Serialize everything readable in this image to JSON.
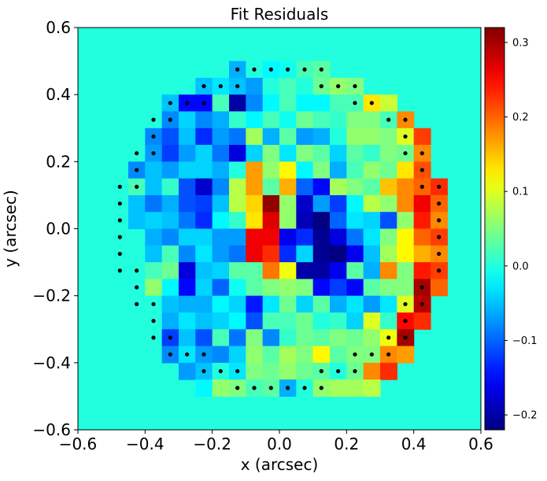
{
  "chart_data": {
    "type": "heatmap",
    "title": "Fit Residuals",
    "xlabel": "x (arcsec)",
    "ylabel": "y (arcsec)",
    "xlim": [
      -0.6,
      0.6
    ],
    "ylim": [
      -0.6,
      0.6
    ],
    "x_ticks": [
      "−0.6",
      "−0.4",
      "−0.2",
      "0.0",
      "0.2",
      "0.4",
      "0.6"
    ],
    "x_tick_values": [
      -0.6,
      -0.4,
      -0.2,
      0.0,
      0.2,
      0.4,
      0.6
    ],
    "y_ticks": [
      "−0.6",
      "−0.4",
      "−0.2",
      "0.0",
      "0.2",
      "0.4",
      "0.6"
    ],
    "y_tick_values": [
      -0.6,
      -0.4,
      -0.2,
      0.0,
      0.2,
      0.4,
      0.6
    ],
    "colorbar": {
      "colormap": "jet",
      "vmin": -0.22,
      "vmax": 0.32,
      "ticks": [
        "−0.2",
        "−0.1",
        "0.0",
        "0.1",
        "0.2",
        "0.3"
      ],
      "tick_values": [
        -0.2,
        -0.1,
        0.0,
        0.1,
        0.2,
        0.3
      ]
    },
    "background_value": 0.0,
    "grid": {
      "pixel_size_arcsec": 0.05,
      "col_centers_arcsec": [
        -0.475,
        -0.425,
        -0.375,
        -0.325,
        -0.275,
        -0.225,
        -0.175,
        -0.125,
        -0.075,
        -0.025,
        0.025,
        0.075,
        0.125,
        0.175,
        0.225,
        0.275,
        0.325,
        0.375,
        0.425,
        0.475
      ],
      "row_centers_arcsec": [
        0.475,
        0.425,
        0.375,
        0.325,
        0.275,
        0.225,
        0.175,
        0.125,
        0.075,
        0.025,
        -0.025,
        -0.075,
        -0.125,
        -0.175,
        -0.225,
        -0.275,
        -0.325,
        -0.375,
        -0.425,
        -0.475
      ]
    },
    "values": [
      [
        null,
        null,
        null,
        null,
        null,
        null,
        null,
        -0.06,
        0.0,
        -0.02,
        -0.01,
        0.02,
        0.03,
        null,
        null,
        null,
        null,
        null,
        null,
        null
      ],
      [
        null,
        null,
        null,
        null,
        null,
        -0.05,
        -0.03,
        -0.05,
        -0.07,
        0.0,
        0.02,
        0.0,
        0.04,
        0.06,
        0.05,
        null,
        null,
        null,
        null,
        null
      ],
      [
        null,
        null,
        null,
        -0.05,
        -0.15,
        -0.15,
        0.02,
        -0.2,
        -0.08,
        -0.02,
        0.02,
        -0.02,
        -0.02,
        0.02,
        0.02,
        0.13,
        0.09,
        null,
        null,
        null
      ],
      [
        null,
        null,
        null,
        -0.08,
        -0.04,
        -0.08,
        -0.06,
        0.01,
        -0.02,
        0.02,
        -0.01,
        0.04,
        0.02,
        0.01,
        0.05,
        0.05,
        0.02,
        0.18,
        null,
        null
      ],
      [
        null,
        null,
        -0.08,
        -0.11,
        -0.05,
        -0.13,
        -0.07,
        -0.09,
        0.07,
        -0.06,
        0.03,
        -0.07,
        -0.06,
        0.0,
        0.06,
        0.06,
        0.05,
        0.1,
        0.22,
        null
      ],
      [
        null,
        null,
        -0.07,
        -0.12,
        -0.07,
        -0.04,
        -0.09,
        -0.17,
        -0.04,
        0.05,
        -0.03,
        0.05,
        0.03,
        -0.04,
        0.03,
        0.01,
        0.05,
        0.04,
        0.18,
        null
      ],
      [
        null,
        -0.08,
        -0.05,
        -0.07,
        -0.04,
        -0.04,
        -0.06,
        0.0,
        0.17,
        0.06,
        0.12,
        -0.02,
        0.05,
        -0.06,
        0.02,
        0.06,
        0.04,
        0.13,
        0.21,
        null
      ],
      [
        null,
        0.02,
        -0.05,
        0.01,
        -0.11,
        -0.18,
        -0.08,
        0.08,
        0.17,
        0.03,
        0.16,
        -0.1,
        -0.15,
        0.07,
        0.05,
        0.03,
        0.15,
        0.18,
        0.2,
        0.23
      ],
      [
        null,
        -0.05,
        -0.09,
        -0.06,
        -0.11,
        -0.12,
        -0.05,
        0.08,
        0.14,
        0.31,
        0.06,
        -0.18,
        -0.07,
        -0.12,
        -0.02,
        0.08,
        0.06,
        0.18,
        0.26,
        0.2
      ],
      [
        null,
        -0.05,
        -0.04,
        -0.05,
        -0.09,
        -0.13,
        -0.02,
        0.01,
        0.13,
        0.27,
        0.06,
        -0.19,
        -0.22,
        -0.1,
        -0.03,
        -0.04,
        -0.11,
        0.06,
        0.24,
        0.18
      ],
      [
        null,
        null,
        -0.06,
        -0.08,
        -0.04,
        -0.04,
        -0.07,
        -0.07,
        0.26,
        0.26,
        -0.16,
        -0.13,
        -0.21,
        -0.17,
        -0.09,
        -0.03,
        0.05,
        0.12,
        0.2,
        0.22
      ],
      [
        null,
        null,
        -0.05,
        0.02,
        -0.08,
        -0.03,
        -0.07,
        -0.09,
        0.26,
        0.23,
        -0.13,
        -0.04,
        -0.21,
        -0.22,
        -0.16,
        -0.05,
        0.07,
        0.12,
        0.16,
        0.18
      ],
      [
        null,
        null,
        0.02,
        0.04,
        -0.17,
        -0.05,
        -0.04,
        0.03,
        0.03,
        0.19,
        0.11,
        -0.2,
        -0.2,
        -0.16,
        0.03,
        -0.06,
        0.18,
        0.05,
        0.24,
        0.22
      ],
      [
        null,
        null,
        0.06,
        -0.02,
        -0.15,
        -0.04,
        -0.1,
        -0.01,
        0.03,
        0.05,
        0.06,
        0.05,
        -0.15,
        -0.12,
        -0.15,
        0.03,
        0.05,
        0.05,
        0.3,
        0.2
      ],
      [
        null,
        null,
        0.0,
        -0.05,
        -0.06,
        -0.06,
        -0.02,
        -0.04,
        -0.14,
        -0.03,
        0.04,
        -0.04,
        0.03,
        -0.06,
        -0.03,
        -0.07,
        -0.03,
        0.1,
        0.29,
        null
      ],
      [
        null,
        null,
        0.0,
        -0.06,
        -0.03,
        -0.05,
        -0.04,
        -0.02,
        -0.11,
        0.02,
        0.02,
        0.04,
        0.0,
        0.01,
        -0.04,
        0.1,
        0.01,
        0.25,
        0.23,
        null
      ],
      [
        null,
        null,
        null,
        -0.12,
        -0.05,
        -0.11,
        0.02,
        -0.09,
        0.05,
        -0.08,
        0.01,
        0.04,
        0.03,
        0.05,
        0.04,
        0.06,
        0.11,
        0.3,
        null,
        null
      ],
      [
        null,
        null,
        null,
        -0.08,
        -0.03,
        -0.07,
        -0.08,
        -0.04,
        0.06,
        0.03,
        0.07,
        0.05,
        0.12,
        0.03,
        0.05,
        0.05,
        0.18,
        0.17,
        null,
        null
      ],
      [
        null,
        null,
        null,
        null,
        -0.07,
        -0.05,
        0.0,
        -0.03,
        0.05,
        0.04,
        0.06,
        0.04,
        0.03,
        0.0,
        0.04,
        0.18,
        0.23,
        null,
        null,
        null
      ],
      [
        null,
        null,
        null,
        null,
        null,
        -0.02,
        0.06,
        0.05,
        0.02,
        0.03,
        -0.06,
        0.0,
        0.06,
        0.07,
        0.07,
        0.08,
        null,
        null,
        null,
        null
      ]
    ],
    "masked_points": [
      [
        -0.125,
        0.475
      ],
      [
        -0.075,
        0.475
      ],
      [
        -0.025,
        0.475
      ],
      [
        0.025,
        0.475
      ],
      [
        0.075,
        0.475
      ],
      [
        0.125,
        0.475
      ],
      [
        -0.225,
        0.425
      ],
      [
        -0.175,
        0.425
      ],
      [
        -0.125,
        0.425
      ],
      [
        0.125,
        0.425
      ],
      [
        0.175,
        0.425
      ],
      [
        0.225,
        0.425
      ],
      [
        -0.325,
        0.375
      ],
      [
        -0.275,
        0.375
      ],
      [
        -0.225,
        0.375
      ],
      [
        0.225,
        0.375
      ],
      [
        0.275,
        0.375
      ],
      [
        -0.375,
        0.325
      ],
      [
        -0.325,
        0.325
      ],
      [
        0.325,
        0.325
      ],
      [
        0.375,
        0.325
      ],
      [
        -0.375,
        0.275
      ],
      [
        0.375,
        0.275
      ],
      [
        -0.425,
        0.225
      ],
      [
        -0.375,
        0.225
      ],
      [
        0.375,
        0.225
      ],
      [
        0.425,
        0.225
      ],
      [
        -0.425,
        0.175
      ],
      [
        0.425,
        0.175
      ],
      [
        -0.425,
        0.125
      ],
      [
        0.425,
        0.125
      ],
      [
        -0.475,
        0.125
      ],
      [
        -0.475,
        0.075
      ],
      [
        -0.475,
        0.025
      ],
      [
        -0.475,
        -0.025
      ],
      [
        -0.475,
        -0.075
      ],
      [
        -0.475,
        -0.125
      ],
      [
        0.475,
        0.125
      ],
      [
        0.475,
        0.075
      ],
      [
        0.475,
        0.025
      ],
      [
        0.475,
        -0.025
      ],
      [
        0.475,
        -0.075
      ],
      [
        0.475,
        -0.125
      ],
      [
        -0.425,
        -0.125
      ],
      [
        -0.425,
        -0.175
      ],
      [
        -0.425,
        -0.225
      ],
      [
        -0.375,
        -0.225
      ],
      [
        0.425,
        -0.175
      ],
      [
        0.425,
        -0.225
      ],
      [
        0.375,
        -0.225
      ],
      [
        -0.375,
        -0.275
      ],
      [
        0.375,
        -0.275
      ],
      [
        -0.375,
        -0.325
      ],
      [
        -0.325,
        -0.325
      ],
      [
        0.325,
        -0.325
      ],
      [
        0.375,
        -0.325
      ],
      [
        -0.325,
        -0.375
      ],
      [
        -0.275,
        -0.375
      ],
      [
        -0.225,
        -0.375
      ],
      [
        0.225,
        -0.375
      ],
      [
        0.275,
        -0.375
      ],
      [
        0.325,
        -0.375
      ],
      [
        -0.225,
        -0.425
      ],
      [
        -0.175,
        -0.425
      ],
      [
        -0.125,
        -0.425
      ],
      [
        0.125,
        -0.425
      ],
      [
        0.175,
        -0.425
      ],
      [
        0.225,
        -0.425
      ],
      [
        -0.125,
        -0.475
      ],
      [
        -0.075,
        -0.475
      ],
      [
        -0.025,
        -0.475
      ],
      [
        0.025,
        -0.475
      ],
      [
        0.075,
        -0.475
      ],
      [
        0.125,
        -0.475
      ]
    ]
  }
}
